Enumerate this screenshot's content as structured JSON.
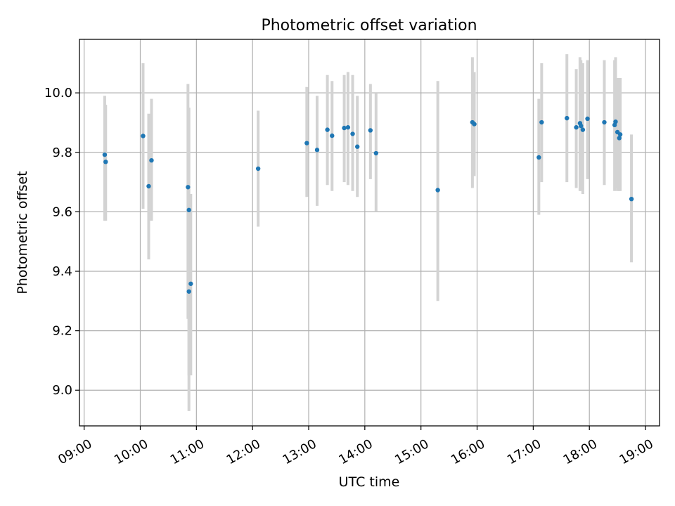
{
  "chart_data": {
    "type": "scatter",
    "title": "Photometric offset variation",
    "xlabel": "UTC time",
    "ylabel": "Photometric offset",
    "x_ticks": [
      "09:00",
      "10:00",
      "11:00",
      "12:00",
      "13:00",
      "14:00",
      "15:00",
      "16:00",
      "17:00",
      "18:00",
      "19:00"
    ],
    "y_ticks": [
      "9.0",
      "9.2",
      "9.4",
      "9.6",
      "9.8",
      "10.0"
    ],
    "xlim": [
      "08:55",
      "19:15"
    ],
    "ylim": [
      8.88,
      10.18
    ],
    "grid": true,
    "point_color": "#1f77b4",
    "errorbar_color": "#d3d3d3",
    "points": [
      {
        "t": "09:22",
        "y": 9.792,
        "low": 9.57,
        "high": 9.99
      },
      {
        "t": "09:23",
        "y": 9.768,
        "low": 9.57,
        "high": 9.96
      },
      {
        "t": "10:03",
        "y": 9.855,
        "low": 9.61,
        "high": 10.1
      },
      {
        "t": "10:09",
        "y": 9.686,
        "low": 9.44,
        "high": 9.93
      },
      {
        "t": "10:12",
        "y": 9.773,
        "low": 9.57,
        "high": 9.98
      },
      {
        "t": "10:51",
        "y": 9.683,
        "low": 9.24,
        "high": 10.03
      },
      {
        "t": "10:52",
        "y": 9.606,
        "low": 8.93,
        "high": 9.95
      },
      {
        "t": "10:52",
        "y": 9.332,
        "low": 9.05,
        "high": 9.62
      },
      {
        "t": "10:54",
        "y": 9.358,
        "low": 9.05,
        "high": 9.66
      },
      {
        "t": "12:06",
        "y": 9.745,
        "low": 9.55,
        "high": 9.94
      },
      {
        "t": "12:58",
        "y": 9.831,
        "low": 9.65,
        "high": 10.02
      },
      {
        "t": "13:09",
        "y": 9.808,
        "low": 9.62,
        "high": 9.99
      },
      {
        "t": "13:20",
        "y": 9.876,
        "low": 9.69,
        "high": 10.06
      },
      {
        "t": "13:25",
        "y": 9.856,
        "low": 9.67,
        "high": 10.04
      },
      {
        "t": "13:38",
        "y": 9.882,
        "low": 9.7,
        "high": 10.06
      },
      {
        "t": "13:42",
        "y": 9.884,
        "low": 9.69,
        "high": 10.07
      },
      {
        "t": "13:47",
        "y": 9.862,
        "low": 9.67,
        "high": 10.06
      },
      {
        "t": "13:52",
        "y": 9.819,
        "low": 9.65,
        "high": 9.99
      },
      {
        "t": "14:06",
        "y": 9.874,
        "low": 9.71,
        "high": 10.03
      },
      {
        "t": "14:12",
        "y": 9.797,
        "low": 9.6,
        "high": 10.0
      },
      {
        "t": "15:18",
        "y": 9.673,
        "low": 9.3,
        "high": 10.04
      },
      {
        "t": "15:55",
        "y": 9.901,
        "low": 9.68,
        "high": 10.12
      },
      {
        "t": "15:57",
        "y": 9.895,
        "low": 9.72,
        "high": 10.07
      },
      {
        "t": "17:06",
        "y": 9.783,
        "low": 9.59,
        "high": 9.98
      },
      {
        "t": "17:09",
        "y": 9.901,
        "low": 9.7,
        "high": 10.1
      },
      {
        "t": "17:36",
        "y": 9.915,
        "low": 9.7,
        "high": 10.13
      },
      {
        "t": "17:46",
        "y": 9.884,
        "low": 9.68,
        "high": 10.08
      },
      {
        "t": "17:50",
        "y": 9.898,
        "low": 9.67,
        "high": 10.12
      },
      {
        "t": "17:51",
        "y": 9.889,
        "low": 9.67,
        "high": 10.11
      },
      {
        "t": "17:53",
        "y": 9.876,
        "low": 9.66,
        "high": 10.1
      },
      {
        "t": "17:58",
        "y": 9.913,
        "low": 9.71,
        "high": 10.11
      },
      {
        "t": "18:16",
        "y": 9.901,
        "low": 9.69,
        "high": 10.11
      },
      {
        "t": "18:27",
        "y": 9.892,
        "low": 9.67,
        "high": 10.11
      },
      {
        "t": "18:28",
        "y": 9.903,
        "low": 9.68,
        "high": 10.12
      },
      {
        "t": "18:30",
        "y": 9.868,
        "low": 9.67,
        "high": 10.05
      },
      {
        "t": "18:32",
        "y": 9.848,
        "low": 9.67,
        "high": 10.05
      },
      {
        "t": "18:33",
        "y": 9.86,
        "low": 9.67,
        "high": 10.05
      },
      {
        "t": "18:45",
        "y": 9.643,
        "low": 9.43,
        "high": 9.86
      }
    ]
  }
}
